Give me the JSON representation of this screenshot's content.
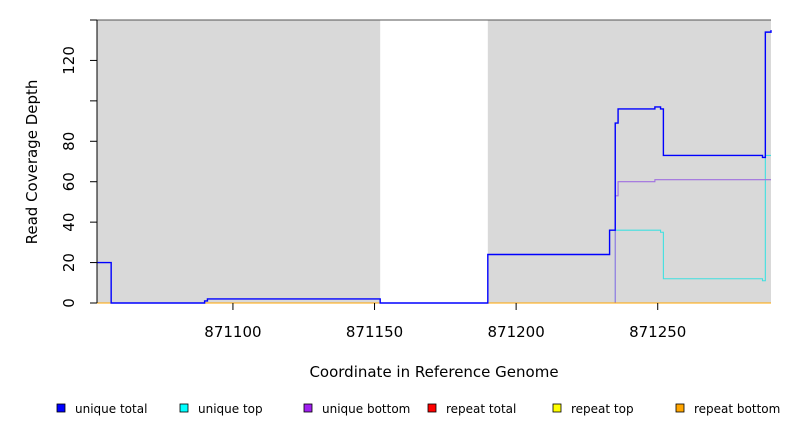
{
  "chart_data": {
    "type": "line",
    "xlabel": "Coordinate in Reference Genome",
    "ylabel": "Read Coverage Depth",
    "xlim": [
      871052,
      871290
    ],
    "ylim": [
      0,
      140
    ],
    "x_ticks": [
      {
        "value": 871100,
        "label": "871100"
      },
      {
        "value": 871150,
        "label": "871150"
      },
      {
        "value": 871200,
        "label": "871200"
      },
      {
        "value": 871250,
        "label": "871250"
      }
    ],
    "y_ticks": [
      {
        "value": 0,
        "label": "0"
      },
      {
        "value": 20,
        "label": "20"
      },
      {
        "value": 40,
        "label": "40"
      },
      {
        "value": 60,
        "label": "60"
      },
      {
        "value": 80,
        "label": "80"
      },
      {
        "value": 100,
        "label": ""
      },
      {
        "value": 120,
        "label": "120"
      }
    ],
    "shaded_regions": [
      {
        "start": 871052,
        "end": 871152
      },
      {
        "start": 871190,
        "end": 871290
      }
    ],
    "shade_color": "#d9d9d9",
    "series": [
      {
        "name": "unique total",
        "color": "#0000ff",
        "legend_color": "#0000ff",
        "points": [
          [
            871052,
            20
          ],
          [
            871057,
            20
          ],
          [
            871057,
            0
          ],
          [
            871090,
            0
          ],
          [
            871090,
            1
          ],
          [
            871091,
            1
          ],
          [
            871091,
            2
          ],
          [
            871152,
            2
          ],
          [
            871152,
            0
          ],
          [
            871190,
            0
          ],
          [
            871190,
            24
          ],
          [
            871233,
            24
          ],
          [
            871233,
            36
          ],
          [
            871235,
            36
          ],
          [
            871235,
            89
          ],
          [
            871236,
            89
          ],
          [
            871236,
            96
          ],
          [
            871249,
            96
          ],
          [
            871249,
            97
          ],
          [
            871251,
            97
          ],
          [
            871251,
            96
          ],
          [
            871252,
            96
          ],
          [
            871252,
            73
          ],
          [
            871287,
            73
          ],
          [
            871287,
            72
          ],
          [
            871288,
            72
          ],
          [
            871288,
            134
          ],
          [
            871290,
            134
          ],
          [
            871290,
            135
          ]
        ]
      },
      {
        "name": "unique top",
        "color": "#40e0e0",
        "legend_color": "#00ffff",
        "points": [
          [
            871052,
            0
          ],
          [
            871235,
            0
          ],
          [
            871235,
            36
          ],
          [
            871251,
            36
          ],
          [
            871251,
            35
          ],
          [
            871252,
            35
          ],
          [
            871252,
            12
          ],
          [
            871287,
            12
          ],
          [
            871287,
            11
          ],
          [
            871288,
            11
          ],
          [
            871288,
            73
          ],
          [
            871290,
            73
          ]
        ]
      },
      {
        "name": "unique bottom",
        "color": "#a070e0",
        "legend_color": "#a020f0",
        "points": [
          [
            871052,
            0
          ],
          [
            871235,
            0
          ],
          [
            871235,
            53
          ],
          [
            871236,
            53
          ],
          [
            871236,
            60
          ],
          [
            871249,
            60
          ],
          [
            871249,
            61
          ],
          [
            871290,
            61
          ]
        ]
      },
      {
        "name": "repeat total",
        "color": "#ff0000",
        "legend_color": "#ff0000",
        "points": [
          [
            871052,
            0
          ],
          [
            871290,
            0
          ]
        ]
      },
      {
        "name": "repeat top",
        "color": "#ffff00",
        "legend_color": "#ffff00",
        "points": [
          [
            871052,
            0
          ],
          [
            871290,
            0
          ]
        ]
      },
      {
        "name": "repeat bottom",
        "color": "#ffa500",
        "legend_color": "#ffa500",
        "points": [
          [
            871052,
            0
          ],
          [
            871290,
            0
          ]
        ]
      }
    ],
    "line_draw_order": [
      "unique top",
      "unique bottom",
      "repeat total",
      "repeat top",
      "repeat bottom",
      "unique total"
    ],
    "legend_position": "bottom"
  }
}
